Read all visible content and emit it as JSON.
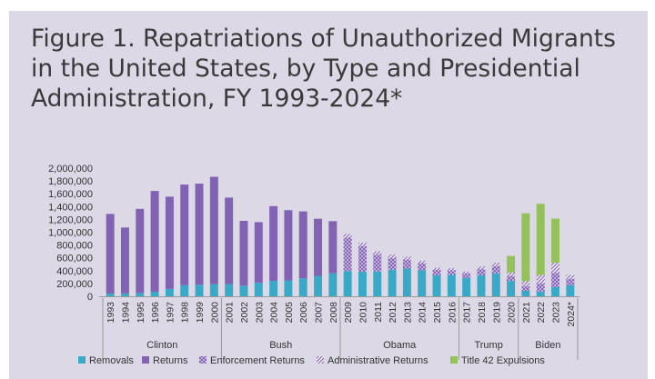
{
  "title": "Figure 1. Repatriations of Unauthorized Migrants in the United States, by Type and Presidential Administration, FY 1993-2024*",
  "chart_data": {
    "type": "bar",
    "stacked": true,
    "title": "Figure 1. Repatriations of Unauthorized Migrants in the United States, by Type and Presidential Administration, FY 1993-2024*",
    "categories": [
      "1993",
      "1994",
      "1995",
      "1996",
      "1997",
      "1998",
      "1999",
      "2000",
      "2001",
      "2002",
      "2003",
      "2004",
      "2005",
      "2006",
      "2007",
      "2008",
      "2009",
      "2010",
      "2011",
      "2012",
      "2013",
      "2014",
      "2015",
      "2016",
      "2017",
      "2018",
      "2019",
      "2020",
      "2021",
      "2022",
      "2023",
      "2024*"
    ],
    "ylim": [
      0,
      2000000
    ],
    "yticks": [
      0,
      200000,
      400000,
      600000,
      800000,
      1000000,
      1200000,
      1400000,
      1600000,
      1800000,
      2000000
    ],
    "ytick_labels": [
      "0",
      "200,000",
      "400,000",
      "600,000",
      "800,000",
      "1,000,000",
      "1,200,000",
      "1,400,000",
      "1,600,000",
      "1,800,000",
      "2,000,000"
    ],
    "grid": false,
    "legend_position": "bottom",
    "series": [
      {
        "name": "Removals",
        "color": "#3aa9c8",
        "pattern": "solid",
        "values": [
          42000,
          45000,
          51000,
          70000,
          115000,
          174000,
          183000,
          189000,
          190000,
          165000,
          211000,
          240000,
          247000,
          281000,
          319000,
          360000,
          395000,
          382000,
          387000,
          415000,
          433000,
          405000,
          326000,
          333000,
          288000,
          328000,
          359000,
          240000,
          86000,
          73000,
          142000,
          171000
        ]
      },
      {
        "name": "Returns",
        "color": "#8262b3",
        "pattern": "solid",
        "values": [
          1243000,
          1029000,
          1313000,
          1574000,
          1440000,
          1570000,
          1575000,
          1676000,
          1350000,
          1012000,
          946000,
          1167000,
          1097000,
          1044000,
          891000,
          812000,
          0,
          0,
          0,
          0,
          0,
          0,
          0,
          0,
          0,
          0,
          0,
          0,
          0,
          0,
          0,
          0
        ]
      },
      {
        "name": "Enforcement Returns",
        "color": "#8262b3",
        "pattern": "cross",
        "values": [
          0,
          0,
          0,
          0,
          0,
          0,
          0,
          0,
          0,
          0,
          0,
          0,
          0,
          0,
          0,
          0,
          520000,
          400000,
          260000,
          180000,
          140000,
          110000,
          90000,
          75000,
          70000,
          90000,
          110000,
          75000,
          70000,
          130000,
          220000,
          100000
        ]
      },
      {
        "name": "Administrative Returns",
        "color": "#8262b3",
        "pattern": "diag",
        "values": [
          0,
          0,
          0,
          0,
          0,
          0,
          0,
          0,
          0,
          0,
          0,
          0,
          0,
          0,
          0,
          0,
          60000,
          55000,
          55000,
          60000,
          45000,
          40000,
          30000,
          30000,
          25000,
          45000,
          55000,
          55000,
          80000,
          130000,
          160000,
          60000
        ]
      },
      {
        "name": "Title 42 Expulsions",
        "color": "#94c15a",
        "pattern": "solid",
        "values": [
          0,
          0,
          0,
          0,
          0,
          0,
          0,
          0,
          0,
          0,
          0,
          0,
          0,
          0,
          0,
          0,
          0,
          0,
          0,
          0,
          0,
          0,
          0,
          0,
          0,
          0,
          0,
          260000,
          1060000,
          1110000,
          690000,
          0
        ]
      }
    ],
    "administrations": [
      {
        "name": "Clinton",
        "start": 0,
        "end": 7
      },
      {
        "name": "Bush",
        "start": 8,
        "end": 15
      },
      {
        "name": "Obama",
        "start": 16,
        "end": 23
      },
      {
        "name": "Trump",
        "start": 24,
        "end": 27
      },
      {
        "name": "Biden",
        "start": 28,
        "end": 31
      }
    ]
  }
}
